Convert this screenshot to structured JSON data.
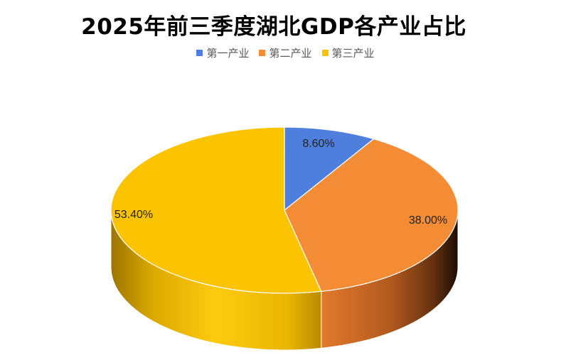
{
  "chart_data": {
    "type": "pie",
    "title": "2025年前三季度湖北GDP各产业占比",
    "slices": [
      {
        "name": "第一产业",
        "value": 8.6,
        "label": "8.60%",
        "color": "#4f7fdc"
      },
      {
        "name": "第二产业",
        "value": 38.0,
        "label": "38.00%",
        "color": "#f48b35"
      },
      {
        "name": "第三产业",
        "value": 53.4,
        "label": "53.40%",
        "color": "#fcc400"
      }
    ],
    "legend_position": "top",
    "style": "3d"
  }
}
